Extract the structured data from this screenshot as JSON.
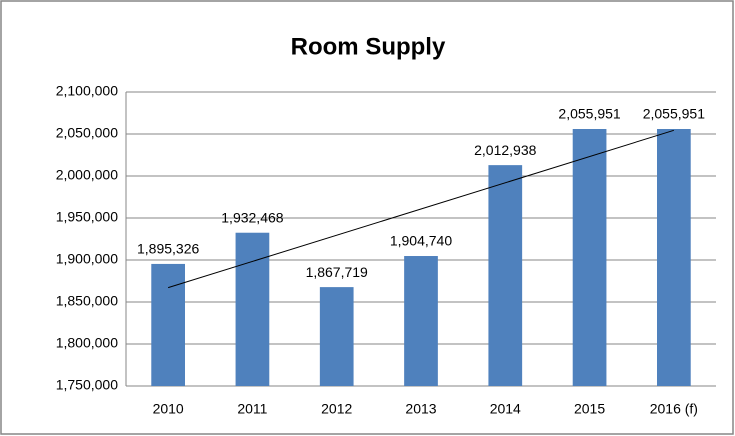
{
  "chart_data": {
    "type": "bar",
    "title": "Room Supply",
    "categories": [
      "2010",
      "2011",
      "2012",
      "2013",
      "2014",
      "2015",
      "2016 (f)"
    ],
    "values": [
      1895326,
      1932468,
      1867719,
      1904740,
      2012938,
      2055951,
      2055951
    ],
    "value_labels": [
      "1,895,326",
      "1,932,468",
      "1,867,719",
      "1,904,740",
      "2,012,938",
      "2,055,951",
      "2,055,951"
    ],
    "color": "#4f81bd",
    "ylim": [
      1750000,
      2100000
    ],
    "yticks": [
      {
        "value": 1750000,
        "label": "1,750,000"
      },
      {
        "value": 1800000,
        "label": "1,800,000"
      },
      {
        "value": 1850000,
        "label": "1,850,000"
      },
      {
        "value": 1900000,
        "label": "1,900,000"
      },
      {
        "value": 1950000,
        "label": "1,950,000"
      },
      {
        "value": 2000000,
        "label": "2,000,000"
      },
      {
        "value": 2050000,
        "label": "2,050,000"
      },
      {
        "value": 2100000,
        "label": "2,100,000"
      }
    ],
    "grid": true,
    "trendline": true
  }
}
